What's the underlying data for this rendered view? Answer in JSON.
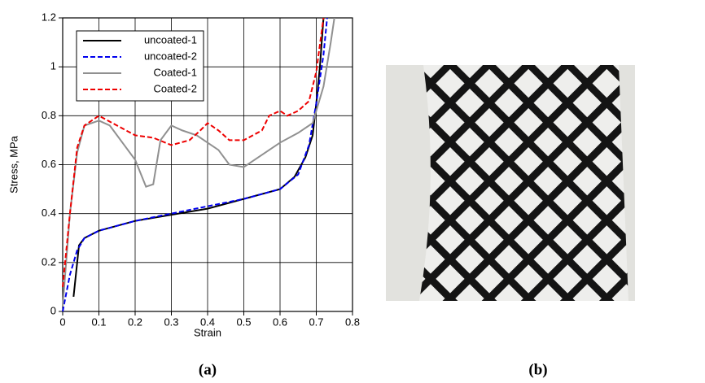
{
  "chart_data": {
    "type": "line",
    "xlabel": "Strain",
    "ylabel": "Stress, MPa",
    "xlim": [
      0,
      0.8
    ],
    "ylim": [
      0,
      1.2
    ],
    "xticks": [
      0,
      0.1,
      0.2,
      0.3,
      0.4,
      0.5,
      0.6,
      0.7,
      0.8
    ],
    "yticks": [
      0,
      0.2,
      0.4,
      0.6,
      0.8,
      1,
      1.2
    ],
    "grid": true,
    "legend": "upper left",
    "series": [
      {
        "name": "uncoated-1",
        "color": "#000000",
        "dashed": false,
        "x": [
          0.03,
          0.04,
          0.045,
          0.05,
          0.06,
          0.1,
          0.2,
          0.3,
          0.4,
          0.5,
          0.6,
          0.64,
          0.67,
          0.69,
          0.7,
          0.71,
          0.72
        ],
        "values": [
          0.06,
          0.2,
          0.27,
          0.28,
          0.3,
          0.33,
          0.37,
          0.395,
          0.42,
          0.46,
          0.5,
          0.55,
          0.63,
          0.72,
          0.85,
          1.0,
          1.2
        ]
      },
      {
        "name": "uncoated-2",
        "color": "#0000ee",
        "dashed": true,
        "x": [
          0,
          0.02,
          0.04,
          0.06,
          0.1,
          0.2,
          0.3,
          0.4,
          0.5,
          0.6,
          0.65,
          0.68,
          0.7,
          0.72,
          0.73
        ],
        "values": [
          0,
          0.15,
          0.25,
          0.3,
          0.33,
          0.37,
          0.4,
          0.43,
          0.46,
          0.5,
          0.56,
          0.68,
          0.85,
          1.05,
          1.2
        ]
      },
      {
        "name": "Coated-1",
        "color": "#909090",
        "dashed": false,
        "x": [
          0,
          0.02,
          0.04,
          0.06,
          0.1,
          0.13,
          0.17,
          0.2,
          0.23,
          0.25,
          0.27,
          0.3,
          0.33,
          0.37,
          0.4,
          0.43,
          0.46,
          0.5,
          0.55,
          0.6,
          0.65,
          0.69,
          0.72,
          0.74,
          0.75
        ],
        "values": [
          0.02,
          0.4,
          0.65,
          0.76,
          0.78,
          0.76,
          0.68,
          0.62,
          0.51,
          0.52,
          0.7,
          0.76,
          0.74,
          0.72,
          0.69,
          0.66,
          0.6,
          0.59,
          0.64,
          0.69,
          0.73,
          0.77,
          0.92,
          1.1,
          1.2
        ]
      },
      {
        "name": "Coated-2",
        "color": "#ee0000",
        "dashed": true,
        "x": [
          0,
          0.02,
          0.04,
          0.06,
          0.1,
          0.15,
          0.2,
          0.25,
          0.3,
          0.35,
          0.38,
          0.4,
          0.43,
          0.46,
          0.5,
          0.55,
          0.57,
          0.6,
          0.62,
          0.65,
          0.68,
          0.7,
          0.72
        ],
        "values": [
          0.1,
          0.4,
          0.67,
          0.76,
          0.8,
          0.76,
          0.72,
          0.71,
          0.68,
          0.7,
          0.74,
          0.77,
          0.74,
          0.7,
          0.7,
          0.74,
          0.8,
          0.82,
          0.8,
          0.82,
          0.86,
          0.98,
          1.2
        ]
      }
    ]
  },
  "panel_labels": [
    "(a)",
    "(b)"
  ]
}
